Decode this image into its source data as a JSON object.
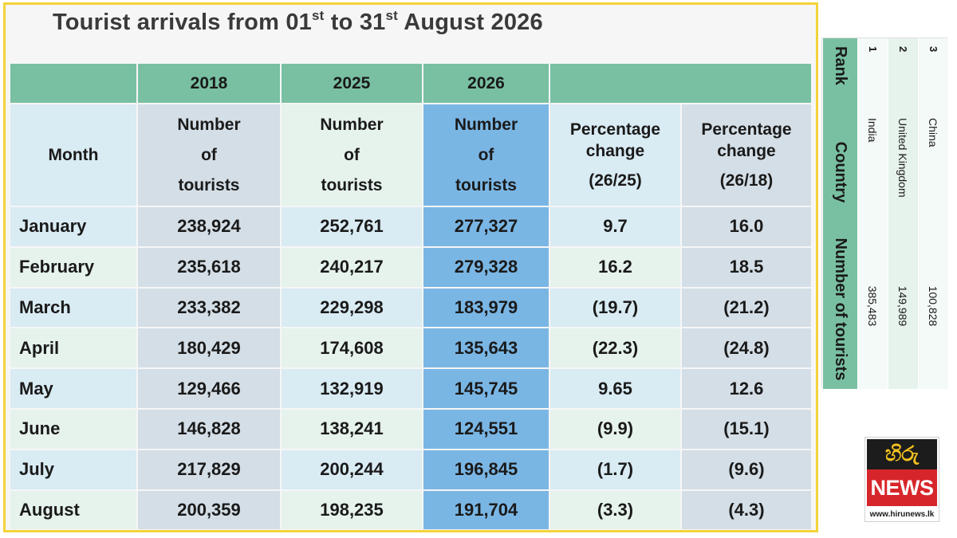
{
  "title": {
    "pre": "Tourist arrivals from 01",
    "sup1": "st",
    "mid": " to 31",
    "sup2": "st",
    "post": " August 2026"
  },
  "table": {
    "month_header": "Month",
    "years": [
      "2018",
      "2025",
      "2026"
    ],
    "col_label": {
      "l1": "Number",
      "l2": "of",
      "l3": "tourists"
    },
    "pct_label": {
      "l1": "Percentage",
      "l2": "change"
    },
    "pct_ratio": [
      "(26/25)",
      "(26/18)"
    ],
    "rows": [
      {
        "month": "January",
        "v2018": "238,924",
        "v2025": "252,761",
        "v2026": "277,327",
        "p1": "9.7",
        "p2": "16.0"
      },
      {
        "month": "February",
        "v2018": "235,618",
        "v2025": "240,217",
        "v2026": "279,328",
        "p1": "16.2",
        "p2": "18.5"
      },
      {
        "month": "March",
        "v2018": "233,382",
        "v2025": "229,298",
        "v2026": "183,979",
        "p1": "(19.7)",
        "p2": "(21.2)"
      },
      {
        "month": "April",
        "v2018": "180,429",
        "v2025": "174,608",
        "v2026": "135,643",
        "p1": "(22.3)",
        "p2": "(24.8)"
      },
      {
        "month": "May",
        "v2018": "129,466",
        "v2025": "132,919",
        "v2026": "145,745",
        "p1": "9.65",
        "p2": "12.6"
      },
      {
        "month": "June",
        "v2018": "146,828",
        "v2025": "138,241",
        "v2026": "124,551",
        "p1": "(9.9)",
        "p2": "(15.1)"
      },
      {
        "month": "July",
        "v2018": "217,829",
        "v2025": "200,244",
        "v2026": "196,845",
        "p1": "(1.7)",
        "p2": "(9.6)"
      },
      {
        "month": "August",
        "v2018": "200,359",
        "v2025": "198,235",
        "v2026": "191,704",
        "p1": "(3.3)",
        "p2": "(4.3)"
      }
    ]
  },
  "ranking": {
    "headers": {
      "rank": "Rank",
      "country": "Country",
      "tourists": "Number of tourists"
    },
    "rows": [
      {
        "rank": "1",
        "country": "India",
        "tourists": "385,483"
      },
      {
        "rank": "2",
        "country": "United Kingdom",
        "tourists": "149,989"
      },
      {
        "rank": "3",
        "country": "China",
        "tourists": "100,828"
      }
    ]
  },
  "logo": {
    "top": "හිරු",
    "mid": "NEWS",
    "url": "www.hirunews.lk"
  },
  "colors": {
    "header": "#79c0a2",
    "col2026": "#7ab6e4",
    "frame": "#f3d33a"
  }
}
